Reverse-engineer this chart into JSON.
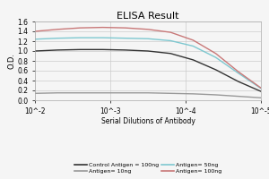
{
  "title": "ELISA Result",
  "ylabel": "O.D.",
  "xlabel": "Serial Dilutions of Antibody",
  "lines": [
    {
      "label": "Control Antigen = 100ng",
      "color": "#333333",
      "y": [
        1.0,
        1.02,
        1.03,
        1.03,
        1.02,
        1.0,
        0.95,
        0.82,
        0.62,
        0.38,
        0.18
      ]
    },
    {
      "label": "Antigen= 10ng",
      "color": "#999999",
      "y": [
        0.14,
        0.15,
        0.15,
        0.15,
        0.15,
        0.15,
        0.14,
        0.13,
        0.11,
        0.08,
        0.05
      ]
    },
    {
      "label": "Antigen= 50ng",
      "color": "#7ec8d0",
      "y": [
        1.24,
        1.26,
        1.27,
        1.27,
        1.26,
        1.25,
        1.21,
        1.1,
        0.87,
        0.55,
        0.24
      ]
    },
    {
      "label": "Antigen= 100ng",
      "color": "#c87878",
      "y": [
        1.4,
        1.44,
        1.47,
        1.48,
        1.47,
        1.44,
        1.38,
        1.22,
        0.95,
        0.58,
        0.25
      ]
    }
  ],
  "ylim": [
    0,
    1.6
  ],
  "yticks": [
    0,
    0.2,
    0.4,
    0.6,
    0.8,
    1.0,
    1.2,
    1.4,
    1.6
  ],
  "xtick_labels": [
    "10^-2",
    "10^-3",
    "10^-4",
    "10^-5"
  ],
  "background_color": "#f5f5f5",
  "grid_color": "#cccccc",
  "title_fontsize": 8,
  "ylabel_fontsize": 6,
  "tick_fontsize": 5.5,
  "legend_fontsize": 4.5
}
